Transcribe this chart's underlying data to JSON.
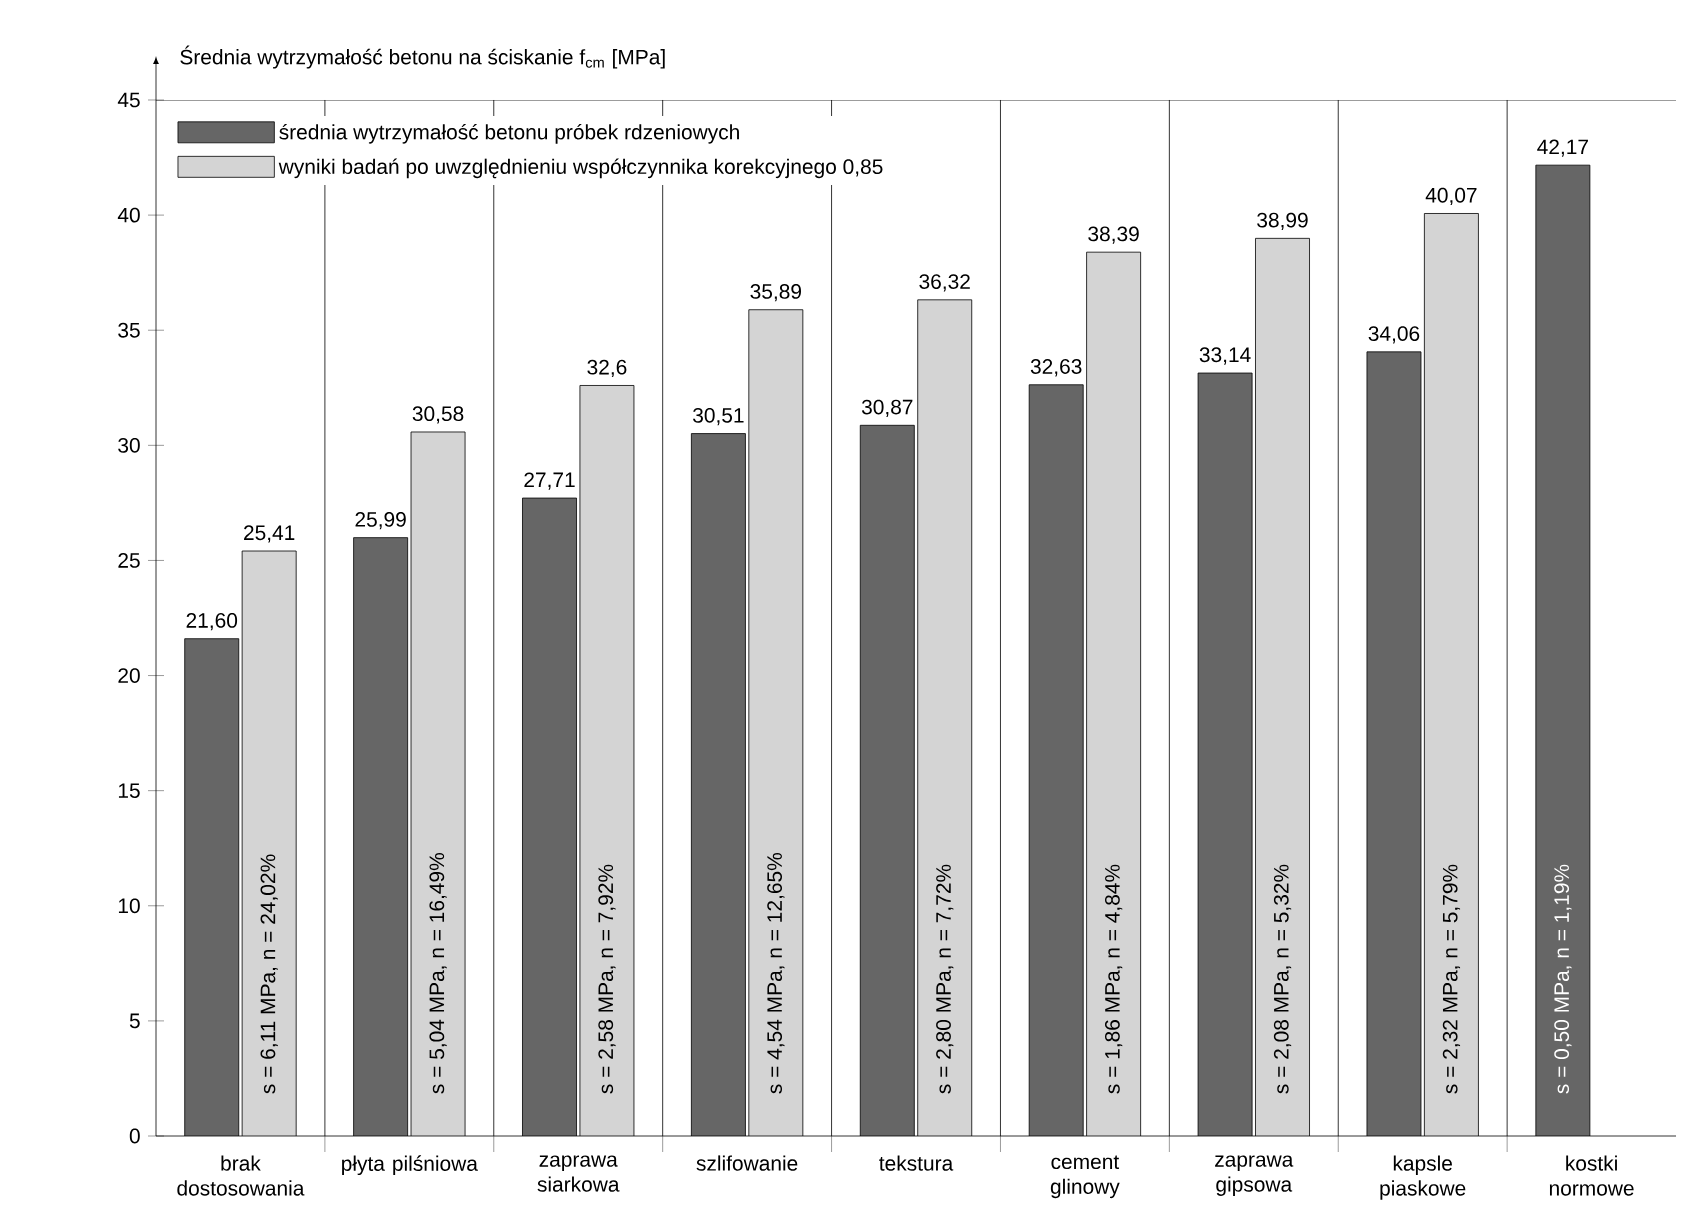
{
  "chart_data": {
    "type": "bar",
    "ylabel": "Średnia wytrzymałość betonu na ściskanie f$_{cm}$ [MPa]",
    "categories": [
      "brak dostosowania",
      "płyta pilśniowa",
      "zaprawa siarkowa",
      "szlifowanie",
      "tekstura",
      "cement glinowy",
      "zaprawa gipsowa",
      "kapsle piaskowe",
      "kostki normowe"
    ],
    "series": [
      {
        "name": "średnia wytrzymałość betonu próbek rdzeniowych",
        "color": "#666666",
        "values": [
          21.6,
          25.99,
          27.71,
          30.51,
          30.87,
          32.63,
          33.14,
          34.06,
          42.17
        ],
        "value_labels": [
          "21,60",
          "25,99",
          "27,71",
          "30,51",
          "30,87",
          "32,63",
          "33,14",
          "34,06",
          "42,17"
        ]
      },
      {
        "name": "wyniki badań po uwzględnieniu współczynnika korekcyjnego 0,85",
        "color": "#d4d4d4",
        "values": [
          25.41,
          30.58,
          32.6,
          35.89,
          36.32,
          38.39,
          38.99,
          40.07,
          null
        ],
        "value_labels": [
          "25,41",
          "30,58",
          "32,6",
          "35,89",
          "36,32",
          "38,39",
          "38,99",
          "40,07",
          null
        ]
      }
    ],
    "annotations": [
      "s = 6,11 MPa, n = 24,02%",
      "s = 5,04 MPa, n = 16,49%",
      "s = 2,58 MPa, n = 7,92%",
      "s = 4,54 MPa, n = 12,65%",
      "s = 2,80 MPa, n = 7,72%",
      "s = 1,86 MPa, n = 4,84%",
      "s = 2,08 MPa, n = 5,32%",
      "s = 2,32 MPa, n = 5,79%",
      "s = 0,50 MPa, n = 1,19%"
    ],
    "ylim": [
      0,
      45
    ],
    "yticks": [
      0,
      5,
      10,
      15,
      20,
      25,
      30,
      35,
      40,
      45
    ],
    "grid": "x",
    "legend": "top left"
  }
}
